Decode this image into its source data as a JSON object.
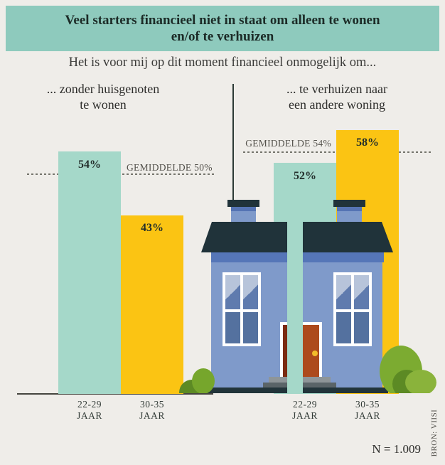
{
  "header": {
    "title_line1": "Veel starters financieel niet in staat om alleen te wonen",
    "title_line2": "en/of te verhuizen"
  },
  "subtitle": "Het is voor mij op dit moment financieel onmogelijk om...",
  "left_group": {
    "title_line1": "... zonder huisgenoten",
    "title_line2": "te wonen",
    "average_label": "GEMIDDELDE 50%",
    "bar1_value": "54%",
    "bar2_value": "43%",
    "cat1_line1": "22-29",
    "cat1_line2": "JAAR",
    "cat2_line1": "30-35",
    "cat2_line2": "JAAR"
  },
  "right_group": {
    "title_line1": "... te verhuizen naar",
    "title_line2": "een andere woning",
    "average_label": "GEMIDDELDE 54%",
    "bar1_value": "52%",
    "bar2_value": "58%",
    "cat1_line1": "22-29",
    "cat1_line2": "JAAR",
    "cat2_line1": "30-35",
    "cat2_line2": "JAAR"
  },
  "footer": {
    "sample": "N = 1.009",
    "source": "BRON: VIISI"
  },
  "chart_data": {
    "type": "bar",
    "title": "Veel starters financieel niet in staat om alleen te wonen en/of te verhuizen",
    "subtitle": "Het is voor mij op dit moment financieel onmogelijk om...",
    "unit": "%",
    "categories": [
      "22-29 JAAR",
      "30-35 JAAR"
    ],
    "groups": [
      {
        "label": "... zonder huisgenoten te wonen",
        "values": [
          54,
          43
        ],
        "average": 50,
        "average_label": "GEMIDDELDE 50%"
      },
      {
        "label": "... te verhuizen naar een andere woning",
        "values": [
          52,
          58
        ],
        "average": 54,
        "average_label": "GEMIDDELDE 54%"
      }
    ],
    "ylim": [
      0,
      60
    ],
    "grid": false,
    "legend": false,
    "sample_note": "N = 1.009",
    "source": "BRON: VIISI",
    "colors": {
      "bar_22_29": "#a5d8c9",
      "bar_30_35": "#fbc413",
      "header_bg": "#8ecabd",
      "background": "#efede9",
      "house_wall": "#7f9aca",
      "house_roof": "#20333a"
    }
  }
}
